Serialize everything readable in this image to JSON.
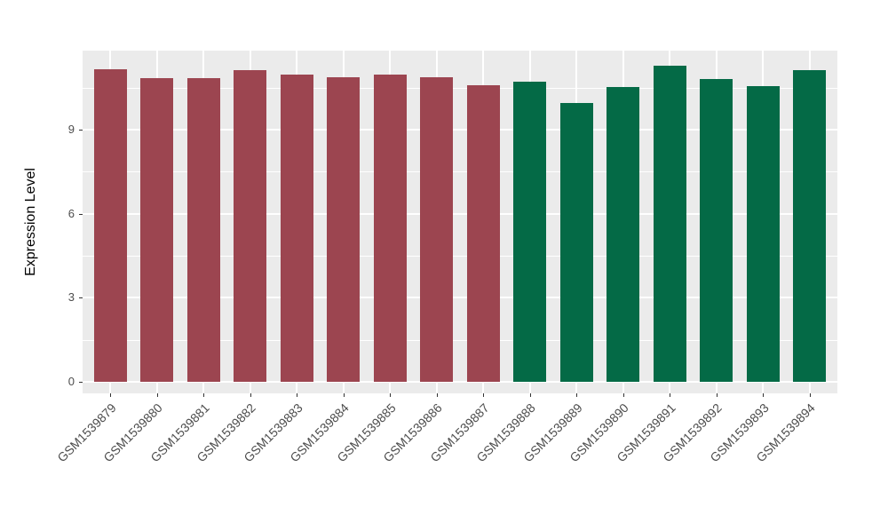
{
  "chart_data": {
    "type": "bar",
    "title": "",
    "xlabel": "",
    "ylabel": "Expression Level",
    "categories": [
      "GSM1539879",
      "GSM1539880",
      "GSM1539881",
      "GSM1539882",
      "GSM1539883",
      "GSM1539884",
      "GSM1539885",
      "GSM1539886",
      "GSM1539887",
      "GSM1539888",
      "GSM1539889",
      "GSM1539890",
      "GSM1539891",
      "GSM1539892",
      "GSM1539893",
      "GSM1539894"
    ],
    "values": [
      11.14,
      10.83,
      10.85,
      11.12,
      10.95,
      10.86,
      10.95,
      10.88,
      10.59,
      10.71,
      9.96,
      10.53,
      11.28,
      10.79,
      10.56,
      11.13
    ],
    "groups": [
      "A",
      "A",
      "A",
      "A",
      "A",
      "A",
      "A",
      "A",
      "A",
      "B",
      "B",
      "B",
      "B",
      "B",
      "B",
      "B"
    ],
    "group_colors": {
      "A": "#9C4550",
      "B": "#046A46"
    },
    "yticks": [
      0,
      3,
      6,
      9
    ],
    "minor_gridlines": [
      1.5,
      4.5,
      7.5,
      10.5
    ],
    "ylim": [
      -0.41,
      11.82
    ],
    "grid": true,
    "legend": false,
    "panel_background": "#EBEBEB",
    "gridline_color": "#FFFFFF",
    "axis_text_color": "#4D4D4D",
    "axis_title_color": "#000000",
    "tick_color": "#333333"
  }
}
